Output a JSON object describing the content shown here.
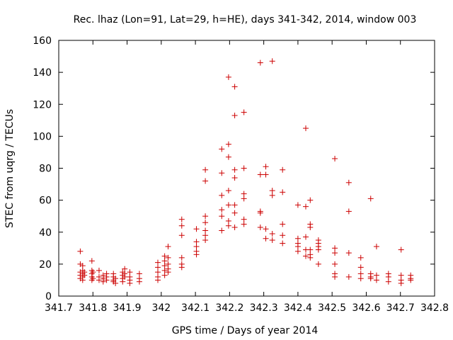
{
  "chart_data": {
    "type": "scatter",
    "title": "Rec. lhaz (Lon=91, Lat=29, h=HE), days 341-342, 2014, window 003",
    "xlabel": "GPS time / Days of year 2014",
    "ylabel": "STEC from uqrg / TECUs",
    "xlim": [
      341.7,
      342.8
    ],
    "ylim": [
      0,
      160
    ],
    "xticks": [
      341.7,
      341.8,
      341.9,
      342.0,
      342.1,
      342.2,
      342.3,
      342.4,
      342.5,
      342.6,
      342.7,
      342.8
    ],
    "xtick_labels": [
      "341.7",
      "341.8",
      "341.9",
      "342",
      "342.1",
      "342.2",
      "342.3",
      "342.4",
      "342.5",
      "342.6",
      "342.7",
      "342.8"
    ],
    "yticks": [
      0,
      20,
      40,
      60,
      80,
      100,
      120,
      140,
      160
    ],
    "ytick_labels": [
      "0",
      "20",
      "40",
      "60",
      "80",
      "100",
      "120",
      "140",
      "160"
    ],
    "grid": false,
    "marker": "+",
    "marker_color": "#cc0000",
    "points": [
      [
        341.763,
        28
      ],
      [
        341.763,
        20
      ],
      [
        341.763,
        15
      ],
      [
        341.763,
        13
      ],
      [
        341.763,
        11
      ],
      [
        341.77,
        19
      ],
      [
        341.77,
        16
      ],
      [
        341.77,
        14
      ],
      [
        341.77,
        12
      ],
      [
        341.77,
        10
      ],
      [
        341.775,
        15
      ],
      [
        341.775,
        13
      ],
      [
        341.797,
        22
      ],
      [
        341.797,
        16
      ],
      [
        341.797,
        14
      ],
      [
        341.797,
        12
      ],
      [
        341.797,
        10
      ],
      [
        341.8,
        15
      ],
      [
        341.8,
        11
      ],
      [
        341.818,
        16
      ],
      [
        341.818,
        12
      ],
      [
        341.818,
        10
      ],
      [
        341.83,
        13
      ],
      [
        341.83,
        11
      ],
      [
        341.83,
        9
      ],
      [
        341.84,
        14
      ],
      [
        341.84,
        12
      ],
      [
        341.84,
        10
      ],
      [
        341.86,
        14
      ],
      [
        341.86,
        12
      ],
      [
        341.86,
        10
      ],
      [
        341.86,
        9
      ],
      [
        341.866,
        11
      ],
      [
        341.866,
        8
      ],
      [
        341.887,
        15
      ],
      [
        341.887,
        13
      ],
      [
        341.887,
        11
      ],
      [
        341.887,
        9
      ],
      [
        341.893,
        17
      ],
      [
        341.893,
        14
      ],
      [
        341.893,
        12
      ],
      [
        341.908,
        15
      ],
      [
        341.908,
        12
      ],
      [
        341.908,
        10
      ],
      [
        341.908,
        8
      ],
      [
        341.936,
        14
      ],
      [
        341.936,
        11
      ],
      [
        341.936,
        9
      ],
      [
        341.99,
        21
      ],
      [
        341.99,
        18
      ],
      [
        341.99,
        15
      ],
      [
        341.99,
        12
      ],
      [
        341.99,
        10
      ],
      [
        342.01,
        25
      ],
      [
        342.01,
        22
      ],
      [
        342.01,
        19
      ],
      [
        342.01,
        16
      ],
      [
        342.01,
        13
      ],
      [
        342.02,
        31
      ],
      [
        342.02,
        24
      ],
      [
        342.02,
        20
      ],
      [
        342.02,
        17
      ],
      [
        342.02,
        15
      ],
      [
        342.06,
        48
      ],
      [
        342.06,
        44
      ],
      [
        342.06,
        38
      ],
      [
        342.06,
        24
      ],
      [
        342.06,
        20
      ],
      [
        342.06,
        18
      ],
      [
        342.103,
        42
      ],
      [
        342.103,
        34
      ],
      [
        342.103,
        31
      ],
      [
        342.103,
        28
      ],
      [
        342.103,
        26
      ],
      [
        342.129,
        79
      ],
      [
        342.129,
        72
      ],
      [
        342.129,
        50
      ],
      [
        342.129,
        46
      ],
      [
        342.129,
        41
      ],
      [
        342.129,
        38
      ],
      [
        342.129,
        35
      ],
      [
        342.177,
        92
      ],
      [
        342.177,
        77
      ],
      [
        342.177,
        63
      ],
      [
        342.177,
        54
      ],
      [
        342.177,
        50
      ],
      [
        342.177,
        41
      ],
      [
        342.197,
        137
      ],
      [
        342.197,
        95
      ],
      [
        342.197,
        87
      ],
      [
        342.197,
        66
      ],
      [
        342.197,
        57
      ],
      [
        342.197,
        47
      ],
      [
        342.197,
        44
      ],
      [
        342.215,
        131
      ],
      [
        342.215,
        113
      ],
      [
        342.215,
        79
      ],
      [
        342.215,
        74
      ],
      [
        342.215,
        57
      ],
      [
        342.215,
        52
      ],
      [
        342.215,
        43
      ],
      [
        342.242,
        115
      ],
      [
        342.242,
        80
      ],
      [
        342.242,
        64
      ],
      [
        342.242,
        61
      ],
      [
        342.242,
        48
      ],
      [
        342.242,
        45
      ],
      [
        342.29,
        146
      ],
      [
        342.29,
        76
      ],
      [
        342.29,
        53
      ],
      [
        342.29,
        52
      ],
      [
        342.29,
        43
      ],
      [
        342.306,
        81
      ],
      [
        342.306,
        76
      ],
      [
        342.306,
        42
      ],
      [
        342.306,
        36
      ],
      [
        342.325,
        147
      ],
      [
        342.325,
        66
      ],
      [
        342.325,
        63
      ],
      [
        342.325,
        39
      ],
      [
        342.325,
        35
      ],
      [
        342.355,
        79
      ],
      [
        342.355,
        65
      ],
      [
        342.355,
        45
      ],
      [
        342.355,
        38
      ],
      [
        342.355,
        33
      ],
      [
        342.4,
        57
      ],
      [
        342.4,
        36
      ],
      [
        342.4,
        33
      ],
      [
        342.4,
        31
      ],
      [
        342.4,
        28
      ],
      [
        342.423,
        105
      ],
      [
        342.423,
        56
      ],
      [
        342.423,
        37
      ],
      [
        342.423,
        29
      ],
      [
        342.423,
        25
      ],
      [
        342.436,
        60
      ],
      [
        342.436,
        45
      ],
      [
        342.436,
        43
      ],
      [
        342.436,
        29
      ],
      [
        342.436,
        26
      ],
      [
        342.436,
        24
      ],
      [
        342.46,
        35
      ],
      [
        342.46,
        33
      ],
      [
        342.46,
        31
      ],
      [
        342.46,
        29
      ],
      [
        342.46,
        20
      ],
      [
        342.508,
        86
      ],
      [
        342.508,
        30
      ],
      [
        342.508,
        27
      ],
      [
        342.508,
        20
      ],
      [
        342.508,
        14
      ],
      [
        342.508,
        12
      ],
      [
        342.549,
        71
      ],
      [
        342.549,
        53
      ],
      [
        342.549,
        27
      ],
      [
        342.549,
        12
      ],
      [
        342.584,
        24
      ],
      [
        342.584,
        18
      ],
      [
        342.584,
        14
      ],
      [
        342.584,
        11
      ],
      [
        342.613,
        61
      ],
      [
        342.613,
        14
      ],
      [
        342.613,
        12
      ],
      [
        342.613,
        11
      ],
      [
        342.63,
        31
      ],
      [
        342.63,
        13
      ],
      [
        342.63,
        10
      ],
      [
        342.665,
        14
      ],
      [
        342.665,
        12
      ],
      [
        342.665,
        9
      ],
      [
        342.702,
        29
      ],
      [
        342.702,
        13
      ],
      [
        342.702,
        10
      ],
      [
        342.702,
        8
      ],
      [
        342.73,
        13
      ],
      [
        342.73,
        11
      ],
      [
        342.73,
        10
      ]
    ]
  }
}
